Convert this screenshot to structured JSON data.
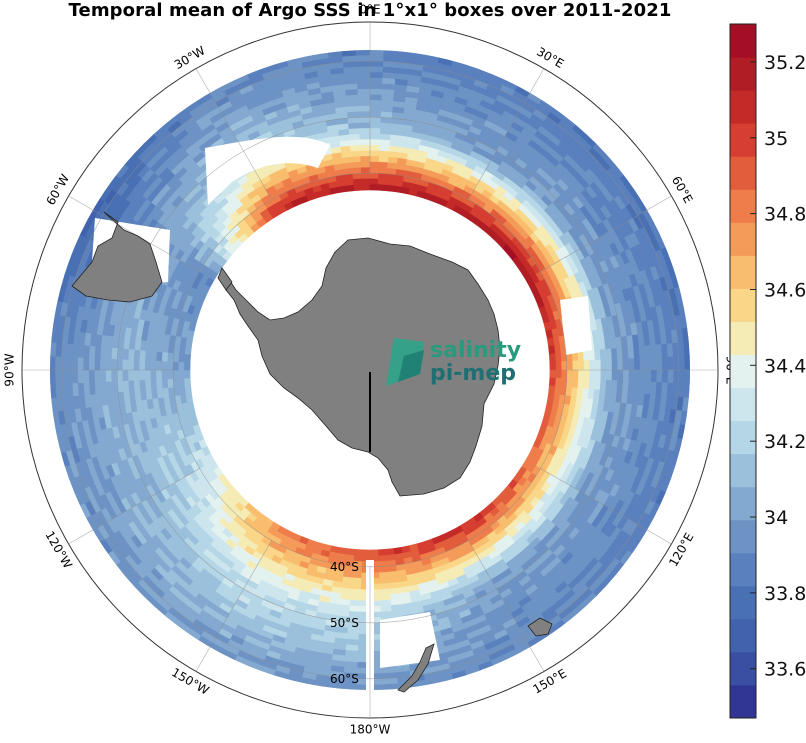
{
  "title": "Temporal mean of Argo SSS in 1°x1° boxes over 2011-2021",
  "logo": {
    "line1": "salinity",
    "line2": "pi-mep"
  },
  "longitude_labels": [
    {
      "key": "lon-0e",
      "text": "0°E",
      "deg": 0
    },
    {
      "key": "lon-30e",
      "text": "30°E",
      "deg": 30
    },
    {
      "key": "lon-60e",
      "text": "60°E",
      "deg": 60
    },
    {
      "key": "lon-90e",
      "text": "90°E",
      "deg": 90
    },
    {
      "key": "lon-120e",
      "text": "120°E",
      "deg": 120
    },
    {
      "key": "lon-150e",
      "text": "150°E",
      "deg": 150
    },
    {
      "key": "lon-180w",
      "text": "180°W",
      "deg": 180
    },
    {
      "key": "lon-150w",
      "text": "150°W",
      "deg": -150
    },
    {
      "key": "lon-120w",
      "text": "120°W",
      "deg": -120
    },
    {
      "key": "lon-90w",
      "text": "90°W",
      "deg": -90
    },
    {
      "key": "lon-60w",
      "text": "60°W",
      "deg": -60
    },
    {
      "key": "lon-30w",
      "text": "30°W",
      "deg": -30
    }
  ],
  "latitude_labels": [
    {
      "key": "lat-60s",
      "text": "60°S",
      "lat": -60
    },
    {
      "key": "lat-50s",
      "text": "50°S",
      "lat": -50
    },
    {
      "key": "lat-40s",
      "text": "40°S",
      "lat": -40
    }
  ],
  "colorbar": {
    "min": 33.47,
    "max": 35.3,
    "ticks": [
      33.6,
      33.8,
      34,
      34.2,
      34.4,
      34.6,
      34.8,
      35,
      35.2
    ],
    "tick_labels": [
      "33.6",
      "33.8",
      "34",
      "34.2",
      "34.4",
      "34.6",
      "34.8",
      "35",
      "35.2"
    ],
    "colors": [
      "#313695",
      "#3a4fa1",
      "#4162ad",
      "#4a70b4",
      "#5a80bd",
      "#6d93c5",
      "#84a9d1",
      "#9bc0db",
      "#b4d6e6",
      "#cde6ee",
      "#e3f2ef",
      "#f5ebb4",
      "#f9d688",
      "#f8bd6d",
      "#f49b5a",
      "#ee7d4b",
      "#e25d3c",
      "#d53e30",
      "#c42b28",
      "#b11d24",
      "#a50f26"
    ]
  },
  "salinity_field": {
    "units": "pss",
    "lat_range": [
      -62,
      -37
    ],
    "sector_means": [
      {
        "lon_deg": -180,
        "outer_north": 35.0,
        "mid": 34.25,
        "south": 33.95
      },
      {
        "lon_deg": -150,
        "outer_north": 34.8,
        "mid": 34.3,
        "south": 33.95
      },
      {
        "lon_deg": -120,
        "outer_north": 34.3,
        "mid": 34.1,
        "south": 33.95
      },
      {
        "lon_deg": -90,
        "outer_north": 34.0,
        "mid": 34.1,
        "south": 33.9
      },
      {
        "lon_deg": -60,
        "outer_north": 33.9,
        "mid": 34.0,
        "south": 33.7
      },
      {
        "lon_deg": -30,
        "outer_north": 35.1,
        "mid": 34.2,
        "south": 33.9
      },
      {
        "lon_deg": 0,
        "outer_north": 35.2,
        "mid": 34.1,
        "south": 33.85
      },
      {
        "lon_deg": 30,
        "outer_north": 35.2,
        "mid": 34.0,
        "south": 33.85
      },
      {
        "lon_deg": 60,
        "outer_north": 35.25,
        "mid": 34.0,
        "south": 33.8
      },
      {
        "lon_deg": 90,
        "outer_north": 35.0,
        "mid": 34.0,
        "south": 33.85
      },
      {
        "lon_deg": 120,
        "outer_north": 34.9,
        "mid": 34.0,
        "south": 33.85
      },
      {
        "lon_deg": 150,
        "outer_north": 35.1,
        "mid": 34.0,
        "south": 33.9
      }
    ]
  }
}
